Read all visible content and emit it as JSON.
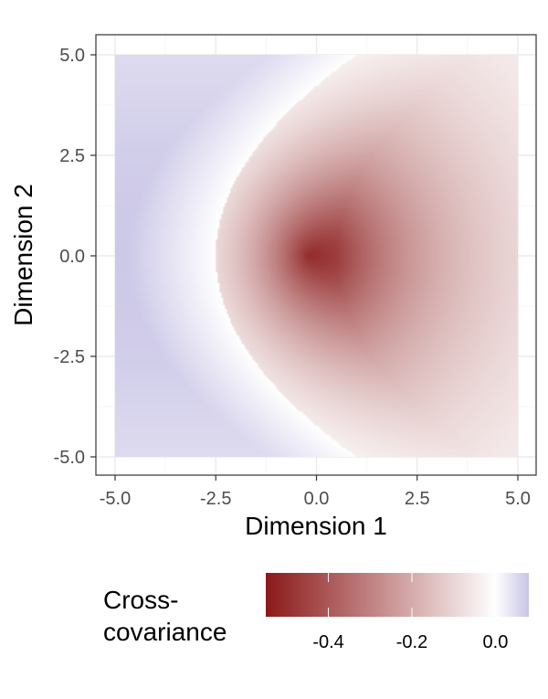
{
  "chart_data": {
    "type": "heatmap",
    "title": "",
    "xlabel": "Dimension 1",
    "ylabel": "Dimension 2",
    "xlim": [
      -5,
      5
    ],
    "ylim": [
      -5,
      5
    ],
    "x_ticks": [
      -5.0,
      -2.5,
      0.0,
      2.5,
      5.0
    ],
    "y_ticks": [
      -5.0,
      -2.5,
      0.0,
      2.5,
      5.0
    ],
    "x_tick_labels": [
      "-5.0",
      "-2.5",
      "0.0",
      "2.5",
      "5.0"
    ],
    "y_tick_labels": [
      "5.0",
      "2.5",
      "0.0",
      "-2.5",
      "-5.0"
    ],
    "y_tick_values": [
      5.0,
      2.5,
      0.0,
      -2.5,
      -5.0
    ],
    "grid": true,
    "field": {
      "min_value": -0.52,
      "min_at": [
        -0.2,
        0.0
      ],
      "max_value": 0.075,
      "max_at": [
        -4.5,
        0.0
      ],
      "zero_contour": "parabola opening toward +x, vertex near (-2.5, 0.0), passing near (1.0, 5.0) and (1.0, -5.0)"
    },
    "legend": {
      "title_lines": [
        "Cross-",
        "covariance"
      ],
      "placement": "bottom",
      "range": [
        -0.55,
        0.08
      ],
      "tick_values": [
        -0.4,
        -0.2,
        0.0
      ],
      "tick_labels": [
        "-0.4",
        "-0.2",
        "0.0"
      ]
    },
    "colors": {
      "low": "#8b1a1a",
      "mid": "#ffffff",
      "high": "#c9c5e6",
      "panel_border": "#333333",
      "grid_major": "#ebebeb",
      "grid_minor": "#f5f5f5",
      "tick_text": "#4d4d4d"
    }
  }
}
